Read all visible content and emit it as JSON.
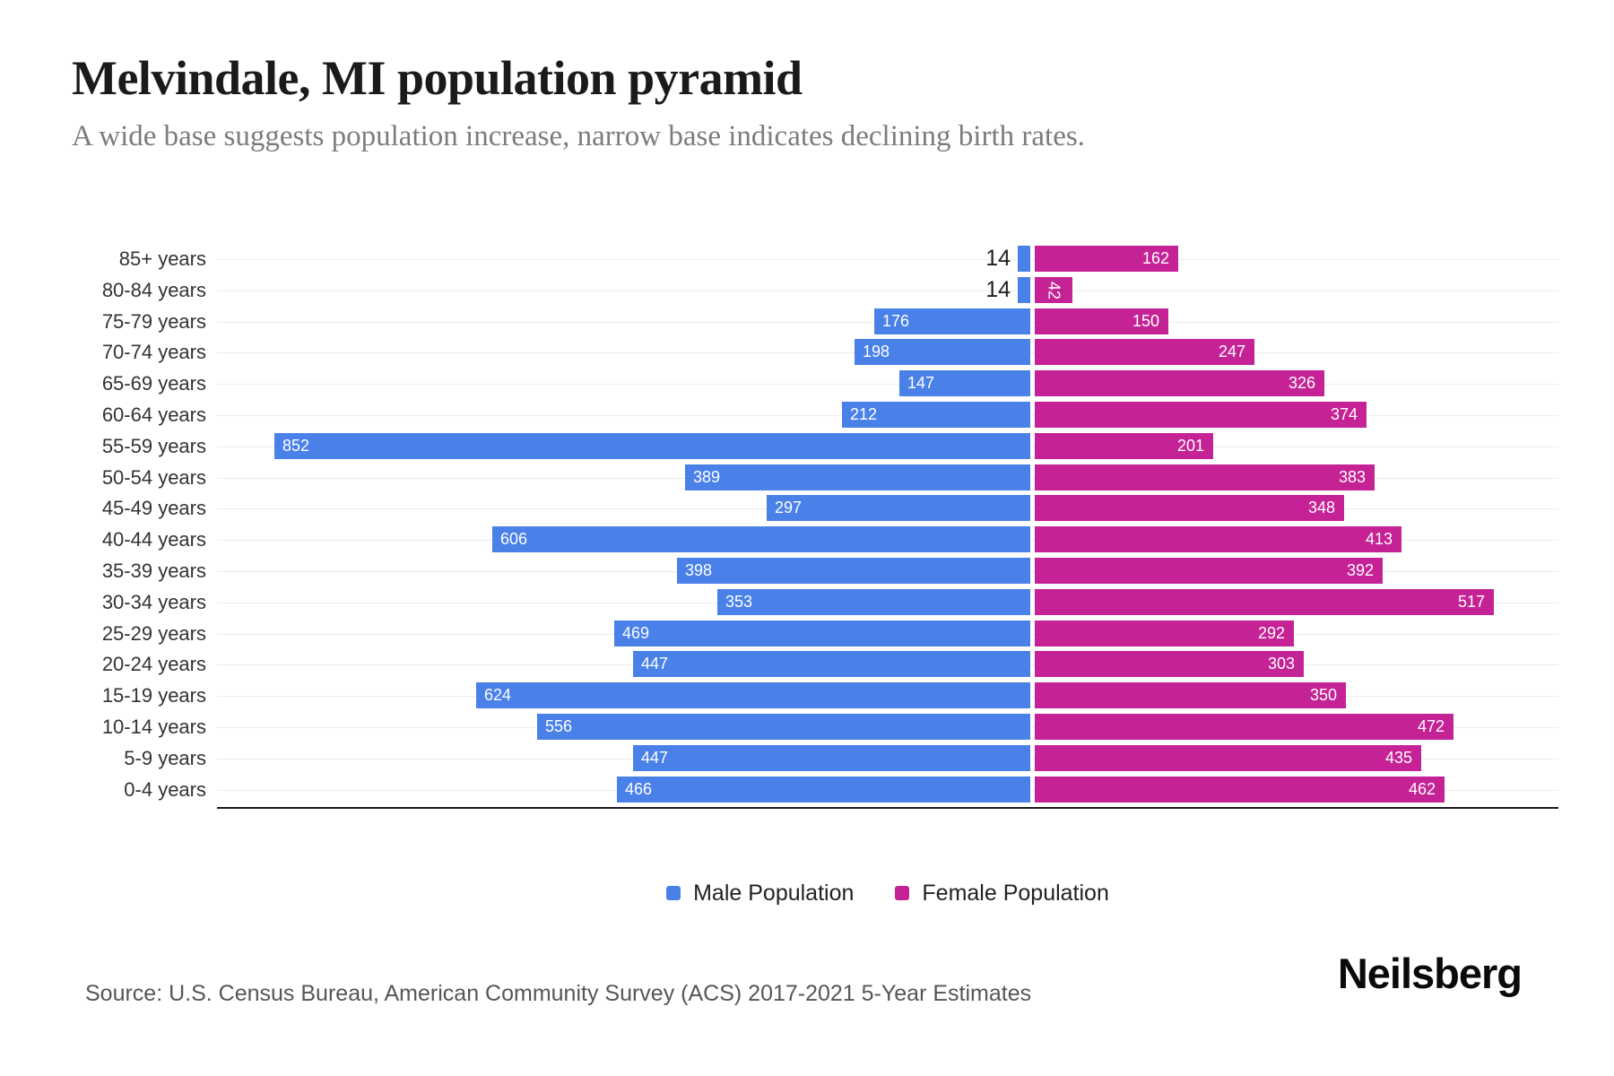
{
  "chart_data": {
    "type": "bar",
    "variant": "population-pyramid",
    "title": "Melvindale, MI population pyramid",
    "subtitle": "A wide base suggests population increase, narrow base indicates declining birth rates.",
    "categories": [
      "85+ years",
      "80-84 years",
      "75-79 years",
      "70-74 years",
      "65-69 years",
      "60-64 years",
      "55-59 years",
      "50-54 years",
      "45-49 years",
      "40-44 years",
      "35-39 years",
      "30-34 years",
      "25-29 years",
      "20-24 years",
      "15-19 years",
      "10-14 years",
      "5-9 years",
      "0-4 years"
    ],
    "series": [
      {
        "name": "Male Population",
        "side": "left",
        "color": "#4A81E9",
        "values": [
          14,
          14,
          176,
          198,
          147,
          212,
          852,
          389,
          297,
          606,
          398,
          353,
          469,
          447,
          624,
          556,
          447,
          466
        ]
      },
      {
        "name": "Female Population",
        "side": "right",
        "color": "#C52296",
        "values": [
          162,
          42,
          150,
          247,
          326,
          374,
          201,
          383,
          348,
          413,
          392,
          517,
          292,
          303,
          350,
          472,
          435,
          462
        ]
      }
    ],
    "legend_position": "bottom",
    "grid": true,
    "value_labels": "inside-bar-ends",
    "small_male_values_labeled_outside": [
      14
    ],
    "small_female_values_labeled_rotated": [
      42
    ]
  },
  "footer": {
    "source": "Source: U.S. Census Bureau, American Community Survey (ACS) 2017-2021 5-Year Estimates",
    "brand": "Neilsberg"
  }
}
